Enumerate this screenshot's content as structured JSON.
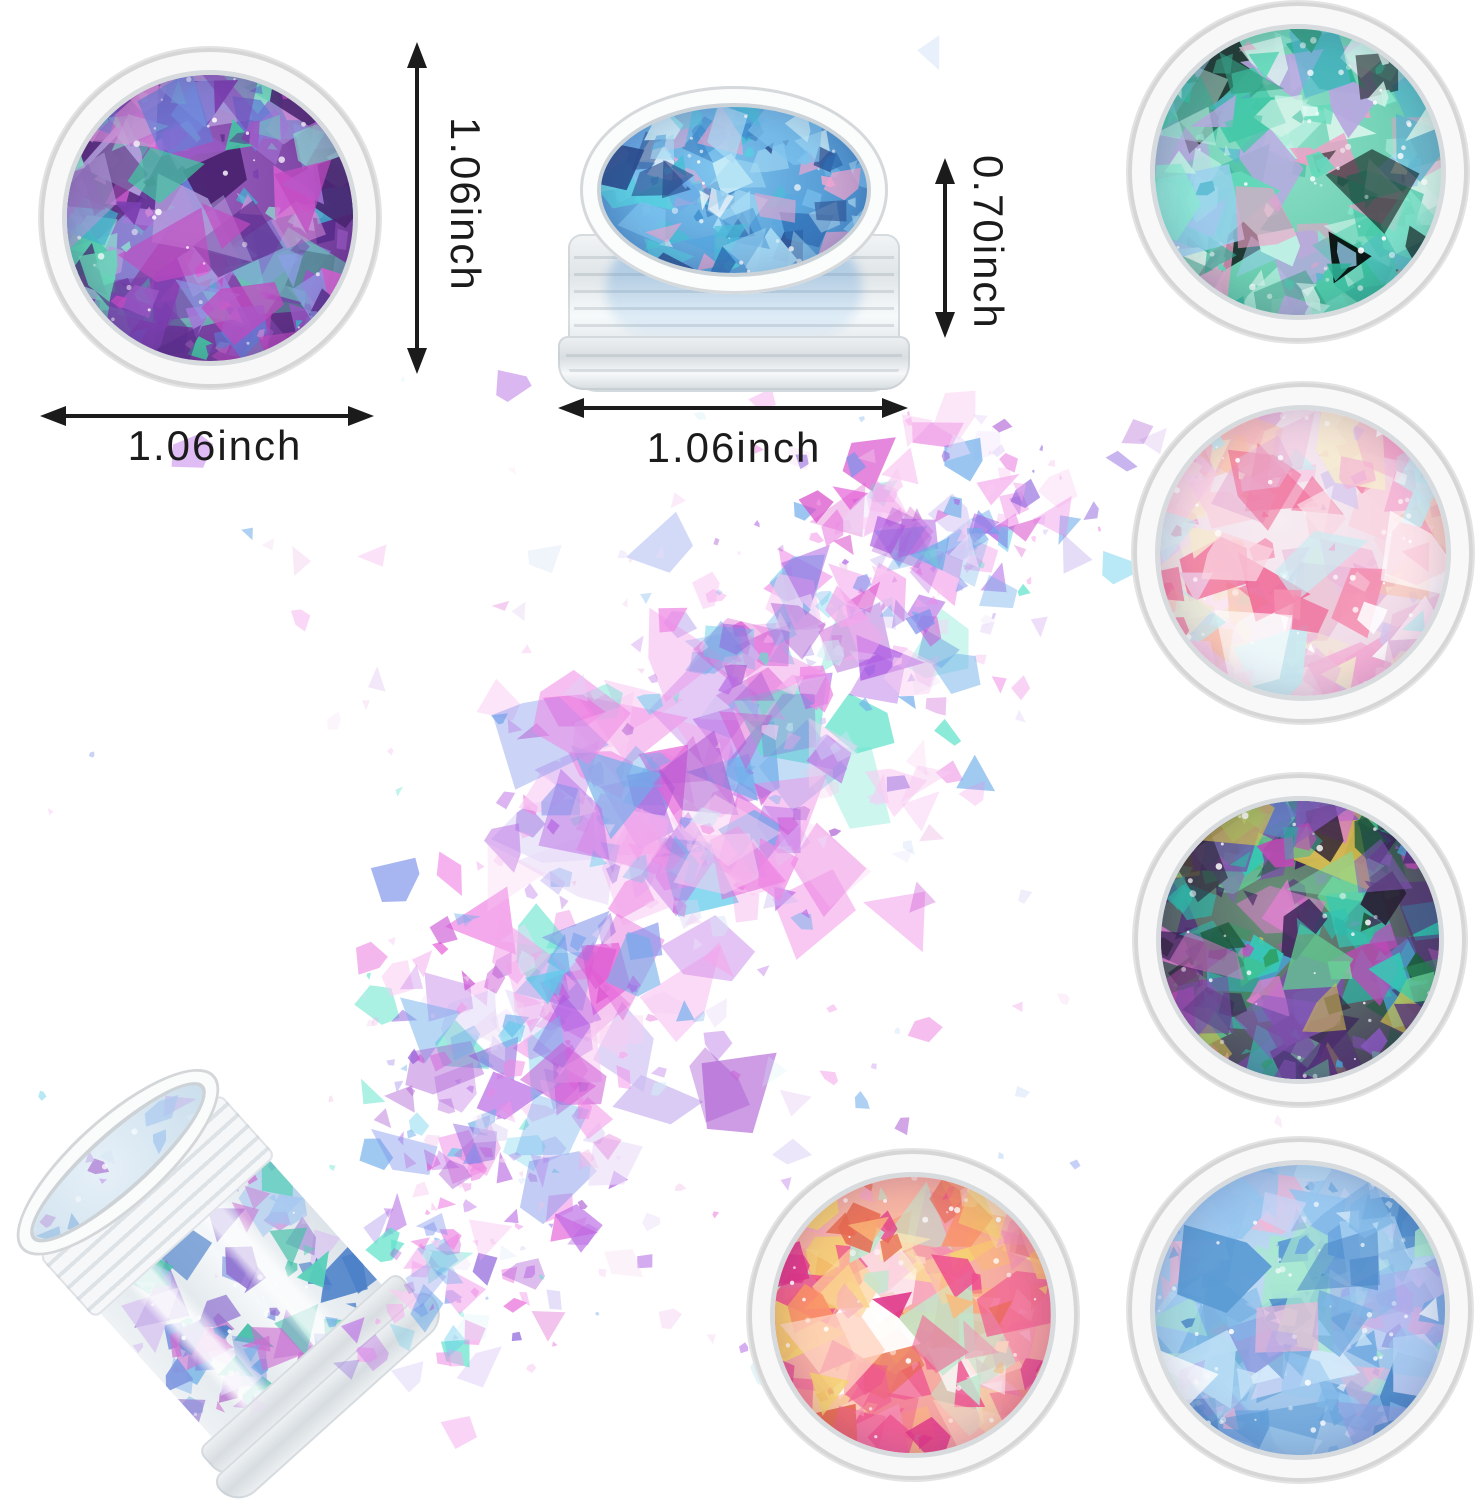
{
  "annotations": {
    "left_jar_height": "1.06inch",
    "left_jar_width": "1.06inch",
    "side_jar_height": "0.70inch",
    "side_jar_width": "1.06inch"
  },
  "colors": {
    "background": "#ffffff",
    "dimension_lines": "#1b1b1b",
    "jar_rim": "#d7dbde"
  },
  "palettes": {
    "purpleTeal": {
      "base": [
        "#9a5fbe",
        "#64308f"
      ],
      "flakes": [
        "#5b2d8e",
        "#7b3fb0",
        "#9b59c6",
        "#c24bc2",
        "#e060d8",
        "#a678d9",
        "#8d9fe6",
        "#5f7fd9",
        "#41c9a2",
        "#66d9b8",
        "#8fe8cf",
        "#b39ddb",
        "#4a2370",
        "#d98fd9",
        "#3fb3d0"
      ]
    },
    "blueFlakes": {
      "base": [
        "#7fc4ee",
        "#3e86c8"
      ],
      "flakes": [
        "#2f6fb5",
        "#3f8fd0",
        "#55a8e0",
        "#7cc3ef",
        "#a8dcf5",
        "#55d0e0",
        "#2a4d8f",
        "#c8ecf8",
        "#f0a6d0",
        "#ffffff",
        "#6aa8e8",
        "#4ac0d8"
      ]
    },
    "tealGreen": {
      "base": [
        "#8fe0c8",
        "#52c2a0"
      ],
      "flakes": [
        "#2eb398",
        "#45c9a8",
        "#63d9ba",
        "#8ae8cf",
        "#bff2e4",
        "#e0faf2",
        "#9ad0f0",
        "#b8a8e0",
        "#f0a0c8",
        "#55b8d0",
        "#35a085",
        "#d8f5ea",
        "#7ad派0"
      ]
    },
    "whitePink": {
      "base": [
        "#f7ecf2",
        "#ecd2e2"
      ],
      "flakes": [
        "#ffffff",
        "#fbe8f2",
        "#f7cde6",
        "#f4aed4",
        "#f48fb1",
        "#f06292",
        "#e8b8d8",
        "#c8ecf2",
        "#f5ead0",
        "#d8c8ee",
        "#f9d4e0",
        "#eec3dd",
        "#fbc2a8"
      ]
    },
    "greenPurple": {
      "base": [
        "#6a9478",
        "#433156"
      ],
      "flakes": [
        "#2e9e62",
        "#45c07e",
        "#63cf92",
        "#7adba6",
        "#2fb8a8",
        "#3a2458",
        "#55317a",
        "#7a4fa8",
        "#c04ab8",
        "#8a5ac0",
        "#2a2035",
        "#d9c44a",
        "#4aa0d0",
        "#e080d0",
        "#1f5c3d",
        "#36c9b5"
      ]
    },
    "bluePastel": {
      "base": [
        "#c2dcf4",
        "#86b4e2"
      ],
      "flakes": [
        "#5b9bd5",
        "#6fa8e0",
        "#7fb8e8",
        "#98c8f0",
        "#b8dcf5",
        "#d5ebfa",
        "#8f9fe0",
        "#a8e8d0",
        "#f0b8d8",
        "#ffffff",
        "#4a88c8",
        "#c8d4f5",
        "#b4a8ea"
      ]
    },
    "pinkOrange": {
      "base": [
        "#f9c9a4",
        "#f18ba0"
      ],
      "flakes": [
        "#ef4f8f",
        "#f06292",
        "#f48fb1",
        "#f9926a",
        "#fbb878",
        "#fcd49a",
        "#fae8b8",
        "#e0368a",
        "#bfe8cf",
        "#ffffff",
        "#f7a8c0",
        "#ffd4c0",
        "#e86a50",
        "#f5d26e"
      ]
    },
    "tiltedRim": {
      "base": [
        "#e6f0f8",
        "#cadeec"
      ],
      "flakes": [
        "#a8c8f0",
        "#c8b8ea",
        "#8fb8e0",
        "#d8e8f5",
        "#b890d8"
      ]
    },
    "tiltedBody": {
      "flakes": [
        "#6fb0e6",
        "#8f6fd0",
        "#c083d9",
        "#58d0b8",
        "#a0c4f0",
        "#d8c4f0",
        "#8098e0",
        "#cc6fd0",
        "#4a7fc8",
        "#b05fc8",
        "#45c0a8"
      ]
    },
    "spill": {
      "flakes": [
        "#f4a8ec",
        "#f4a8ec",
        "#ef86e4",
        "#ef86e4",
        "#e661d8",
        "#d94ecb",
        "#cb54d4",
        "#ab58e2",
        "#8d62dc",
        "#7e92ea",
        "#6fadea",
        "#6fadea",
        "#5ccaea",
        "#5fe2cb",
        "#cbbcf2",
        "#eadcf9",
        "#f9ccf2",
        "#f9ccf2",
        "#ba6ce4",
        "#a855d0"
      ],
      "pale": [
        "#f3cdee",
        "#e9d6f5",
        "#d4e3f7",
        "#cfeef4",
        "#f6dff2",
        "#dcd4f5",
        "#f0c4e8"
      ]
    }
  }
}
